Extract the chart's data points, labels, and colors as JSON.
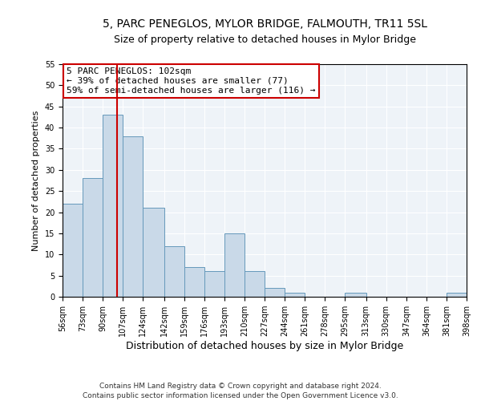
{
  "title1": "5, PARC PENEGLOS, MYLOR BRIDGE, FALMOUTH, TR11 5SL",
  "title2": "Size of property relative to detached houses in Mylor Bridge",
  "xlabel": "Distribution of detached houses by size in Mylor Bridge",
  "ylabel": "Number of detached properties",
  "footnote1": "Contains HM Land Registry data © Crown copyright and database right 2024.",
  "footnote2": "Contains public sector information licensed under the Open Government Licence v3.0.",
  "annotation_title": "5 PARC PENEGLOS: 102sqm",
  "annotation_line1": "← 39% of detached houses are smaller (77)",
  "annotation_line2": "59% of semi-detached houses are larger (116) →",
  "bar_edges": [
    56,
    73,
    90,
    107,
    124,
    142,
    159,
    176,
    193,
    210,
    227,
    244,
    261,
    278,
    295,
    313,
    330,
    347,
    364,
    381,
    398
  ],
  "bar_heights": [
    22,
    28,
    43,
    38,
    21,
    12,
    7,
    6,
    15,
    6,
    2,
    1,
    0,
    0,
    1,
    0,
    0,
    0,
    0,
    1
  ],
  "bar_color": "#c9d9e8",
  "bar_edgecolor": "#6699bb",
  "vline_color": "#cc0000",
  "vline_x": 102,
  "ylim": [
    0,
    55
  ],
  "yticks": [
    0,
    5,
    10,
    15,
    20,
    25,
    30,
    35,
    40,
    45,
    50,
    55
  ],
  "bg_color": "#eef3f8",
  "annotation_box_color": "#ffffff",
  "annotation_box_edgecolor": "#cc0000",
  "title_fontsize": 10,
  "subtitle_fontsize": 9,
  "xlabel_fontsize": 9,
  "ylabel_fontsize": 8,
  "tick_fontsize": 7,
  "footnote_fontsize": 6.5,
  "annotation_fontsize": 8,
  "tick_labels": [
    "56sqm",
    "73sqm",
    "90sqm",
    "107sqm",
    "124sqm",
    "142sqm",
    "159sqm",
    "176sqm",
    "193sqm",
    "210sqm",
    "227sqm",
    "244sqm",
    "261sqm",
    "278sqm",
    "295sqm",
    "313sqm",
    "330sqm",
    "347sqm",
    "364sqm",
    "381sqm",
    "398sqm"
  ]
}
